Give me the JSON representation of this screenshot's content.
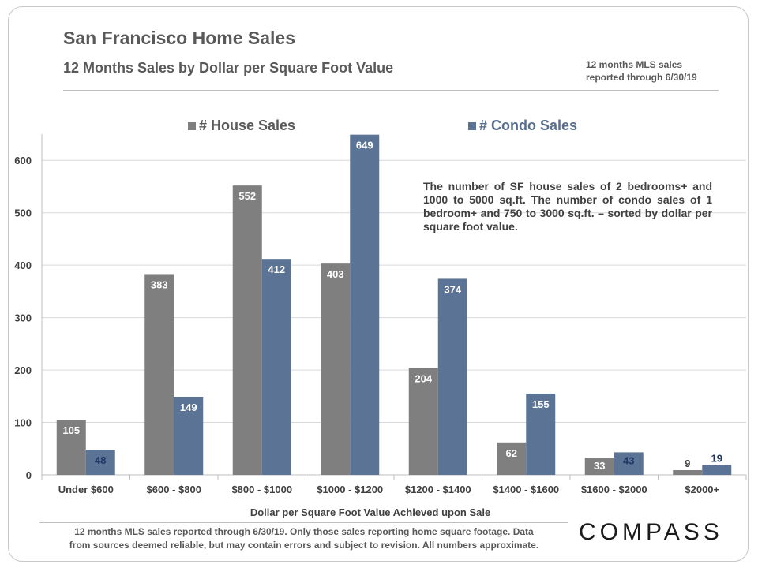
{
  "header": {
    "title": "San Francisco Home Sales",
    "subtitle": "12 Months Sales by Dollar per Square Foot Value",
    "source_note_line1": "12 months MLS sales",
    "source_note_line2": "reported through 6/30/19"
  },
  "annotation": "The number of SF house sales of 2 bedrooms+ and 1000 to 5000 sq.ft. The number of condo sales of 1 bedroom+ and 750 to 3000 sq.ft. – sorted by dollar per square foot value.",
  "footer": {
    "line1": "12 months MLS sales reported through 6/30/19. Only those sales reporting home square footage. Data",
    "line2": "from sources deemed reliable, but may contain errors and subject to revision. All numbers approximate."
  },
  "logo": "COMPASS",
  "colors": {
    "house": "#7f7f7f",
    "condo": "#5b7395",
    "condo_label": "#203864"
  },
  "chart_data": {
    "type": "bar",
    "xlabel": "Dollar per Square Foot Value Achieved upon Sale",
    "ylabel": "",
    "ylim": [
      0,
      650
    ],
    "yticks": [
      0,
      100,
      200,
      300,
      400,
      500,
      600
    ],
    "grid": true,
    "legend_position": "top",
    "categories": [
      "Under $600",
      "$600 - $800",
      "$800 - $1000",
      "$1000 - $1200",
      "$1200 - $1400",
      "$1400 - $1600",
      "$1600 - $2000",
      "$2000+"
    ],
    "series": [
      {
        "name": "# House Sales",
        "values": [
          105,
          383,
          552,
          403,
          204,
          62,
          33,
          9
        ]
      },
      {
        "name": "# Condo Sales",
        "values": [
          48,
          149,
          412,
          649,
          374,
          155,
          43,
          19
        ]
      }
    ]
  }
}
